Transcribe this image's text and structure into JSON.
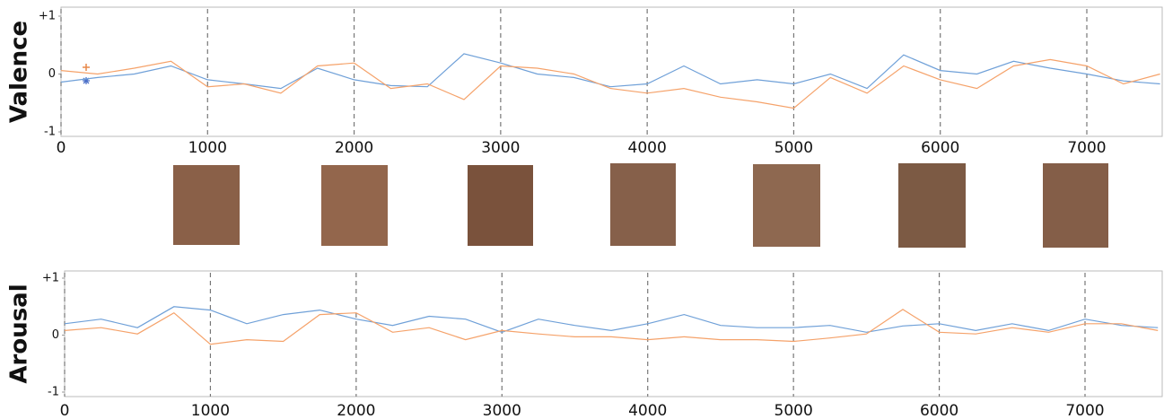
{
  "chart_data": [
    {
      "type": "line",
      "ylabel": "Valence",
      "x": [
        0,
        250,
        500,
        750,
        1000,
        1250,
        1500,
        1750,
        2000,
        2250,
        2500,
        2750,
        3000,
        3250,
        3500,
        3750,
        4000,
        4250,
        4500,
        4750,
        5000,
        5250,
        5500,
        5750,
        6000,
        6250,
        6500,
        6750,
        7000,
        7250,
        7500
      ],
      "series": [
        {
          "color": "#6fa0d8",
          "values": [
            -0.14,
            -0.06,
            0,
            0.14,
            -0.1,
            -0.17,
            -0.25,
            0.1,
            -0.1,
            -0.2,
            -0.22,
            0.35,
            0.19,
            0,
            -0.06,
            -0.22,
            -0.17,
            0.14,
            -0.17,
            -0.1,
            -0.17,
            0,
            -0.25,
            0.33,
            0.06,
            0,
            0.22,
            0.1,
            0,
            -0.12,
            -0.17
          ]
        },
        {
          "color": "#f5a26a",
          "values": [
            0.06,
            0,
            0.1,
            0.22,
            -0.22,
            -0.17,
            -0.33,
            0.14,
            0.19,
            -0.25,
            -0.17,
            -0.44,
            0.14,
            0.1,
            0,
            -0.25,
            -0.33,
            -0.25,
            -0.4,
            -0.48,
            -0.59,
            -0.06,
            -0.33,
            0.14,
            -0.1,
            -0.25,
            0.14,
            0.25,
            0.14,
            -0.17,
            0
          ]
        }
      ],
      "xlim": [
        0,
        7500
      ],
      "xticks": [
        0,
        1000,
        2000,
        3000,
        4000,
        5000,
        6000,
        7000
      ],
      "ylim": [
        -1,
        1
      ],
      "yticks": [
        -1,
        0,
        {
          "value": 1,
          "label": "+1"
        }
      ],
      "grid": "x"
    },
    {
      "type": "line",
      "ylabel": "Arousal",
      "x": [
        0,
        250,
        500,
        750,
        1000,
        1250,
        1500,
        1750,
        2000,
        2250,
        2500,
        2750,
        3000,
        3250,
        3500,
        3750,
        4000,
        4250,
        4500,
        4750,
        5000,
        5250,
        5500,
        5750,
        6000,
        6250,
        6500,
        6750,
        7000,
        7250,
        7500
      ],
      "series": [
        {
          "color": "#6fa0d8",
          "values": [
            0.2,
            0.28,
            0.13,
            0.5,
            0.44,
            0.2,
            0.36,
            0.44,
            0.28,
            0.17,
            0.33,
            0.28,
            0.05,
            0.28,
            0.17,
            0.08,
            0.2,
            0.36,
            0.17,
            0.13,
            0.13,
            0.17,
            0.05,
            0.16,
            0.2,
            0.08,
            0.2,
            0.08,
            0.28,
            0.17,
            0.13
          ]
        },
        {
          "color": "#f5a26a",
          "values": [
            0.08,
            0.13,
            0.02,
            0.39,
            -0.16,
            -0.08,
            -0.11,
            0.36,
            0.39,
            0.05,
            0.13,
            -0.08,
            0.08,
            0.02,
            -0.03,
            -0.03,
            -0.08,
            -0.03,
            -0.08,
            -0.08,
            -0.11,
            -0.05,
            0.02,
            0.45,
            0.05,
            0.02,
            0.13,
            0.05,
            0.2,
            0.2,
            0.08
          ]
        }
      ],
      "xlim": [
        0,
        7500
      ],
      "xticks": [
        0,
        1000,
        2000,
        3000,
        4000,
        5000,
        6000,
        7000
      ],
      "ylim": [
        -1,
        1
      ],
      "yticks": [
        -1,
        0,
        {
          "value": 1,
          "label": "+1"
        }
      ],
      "grid": "x"
    }
  ]
}
